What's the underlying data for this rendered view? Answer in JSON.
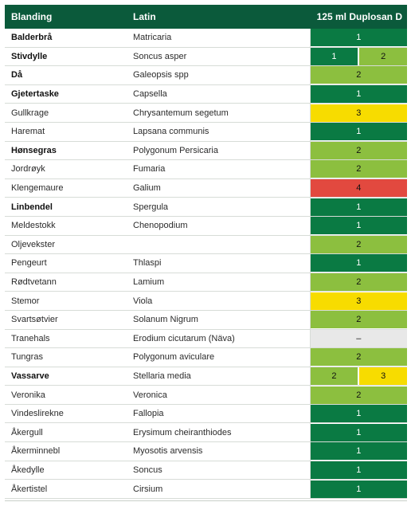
{
  "header": {
    "col1": "Blanding",
    "col2": "Latin",
    "col3": "125 ml Duplosan D"
  },
  "colors": {
    "1": "#0a7a43",
    "2": "#8cbf3f",
    "3": "#f7dc00",
    "4": "#e2493f",
    "–": "#e8e8e8"
  },
  "rows": [
    {
      "name": "Balderbrå",
      "bold": true,
      "latin": "Matricaria",
      "scores": [
        "1"
      ]
    },
    {
      "name": "Stivdylle",
      "bold": true,
      "latin": "Soncus asper",
      "scores": [
        "1",
        "2"
      ]
    },
    {
      "name": "Då",
      "bold": true,
      "latin": "Galeopsis spp",
      "scores": [
        "2"
      ]
    },
    {
      "name": "Gjetertaske",
      "bold": true,
      "latin": "Capsella",
      "scores": [
        "1"
      ]
    },
    {
      "name": "Gullkrage",
      "bold": false,
      "latin": "Chrysantemum segetum",
      "scores": [
        "3"
      ]
    },
    {
      "name": "Haremat",
      "bold": false,
      "latin": "Lapsana communis",
      "scores": [
        "1"
      ]
    },
    {
      "name": "Hønsegras",
      "bold": true,
      "latin": "Polygonum Persicaria",
      "scores": [
        "2"
      ]
    },
    {
      "name": "Jordrøyk",
      "bold": false,
      "latin": "Fumaria",
      "scores": [
        "2"
      ]
    },
    {
      "name": "Klengemaure",
      "bold": false,
      "latin": "Galium",
      "scores": [
        "4"
      ]
    },
    {
      "name": "Linbendel",
      "bold": true,
      "latin": "Spergula",
      "scores": [
        "1"
      ]
    },
    {
      "name": "Meldestokk",
      "bold": false,
      "latin": "Chenopodium",
      "scores": [
        "1"
      ]
    },
    {
      "name": "Oljevekster",
      "bold": false,
      "latin": "",
      "scores": [
        "2"
      ]
    },
    {
      "name": "Pengeurt",
      "bold": false,
      "latin": "Thlaspi",
      "scores": [
        "1"
      ]
    },
    {
      "name": "Rødtvetann",
      "bold": false,
      "latin": "Lamium",
      "scores": [
        "2"
      ]
    },
    {
      "name": "Stemor",
      "bold": false,
      "latin": "Viola",
      "scores": [
        "3"
      ]
    },
    {
      "name": "Svartsøtvier",
      "bold": false,
      "latin": "Solanum Nigrum",
      "scores": [
        "2"
      ]
    },
    {
      "name": "Tranehals",
      "bold": false,
      "latin": "Erodium cicutarum (Näva)",
      "scores": [
        "–"
      ]
    },
    {
      "name": "Tungras",
      "bold": false,
      "latin": "Polygonum aviculare",
      "scores": [
        "2"
      ]
    },
    {
      "name": "Vassarve",
      "bold": true,
      "latin": "Stellaria media",
      "scores": [
        "2",
        "3"
      ]
    },
    {
      "name": "Veronika",
      "bold": false,
      "latin": "Veronica",
      "scores": [
        "2"
      ]
    },
    {
      "name": "Vindeslirekne",
      "bold": false,
      "latin": "Fallopia",
      "scores": [
        "1"
      ]
    },
    {
      "name": "Åkergull",
      "bold": false,
      "latin": "Erysimum cheiranthiodes",
      "scores": [
        "1"
      ]
    },
    {
      "name": "Åkerminnebl",
      "bold": false,
      "latin": "Myosotis arvensis",
      "scores": [
        "1"
      ]
    },
    {
      "name": "Åkedylle",
      "bold": false,
      "latin": "Soncus",
      "scores": [
        "1"
      ]
    },
    {
      "name": "Åkertistel",
      "bold": false,
      "latin": "Cirsium",
      "scores": [
        "1"
      ]
    }
  ]
}
